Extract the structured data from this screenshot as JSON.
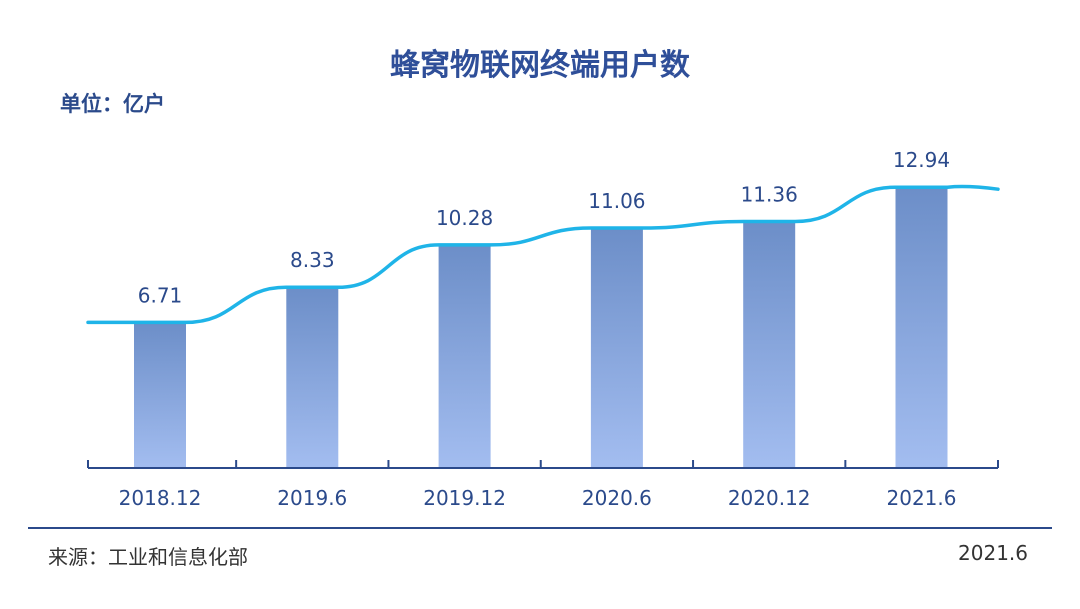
{
  "chart_data": {
    "type": "bar",
    "title": "蜂窝物联网终端用户数",
    "unit_label": "单位：亿户",
    "categories": [
      "2018.12",
      "2019.6",
      "2019.12",
      "2020.6",
      "2020.12",
      "2021.6"
    ],
    "values": [
      6.71,
      8.33,
      10.28,
      11.06,
      11.36,
      12.94
    ],
    "value_labels": [
      "6.71",
      "8.33",
      "10.28",
      "11.06",
      "11.36",
      "12.94"
    ],
    "xlabel": "",
    "ylabel": "",
    "ylim": [
      0,
      14
    ],
    "grid": false,
    "trend_line": true,
    "colors": {
      "bar_top": "#6c8ec8",
      "bar_bottom": "#a3bdf0",
      "line": "#1fb4e8",
      "axis": "#2b4a8b",
      "text": "#2b4a8b"
    }
  },
  "footer": {
    "source": "来源：工业和信息化部",
    "date": "2021.6"
  }
}
